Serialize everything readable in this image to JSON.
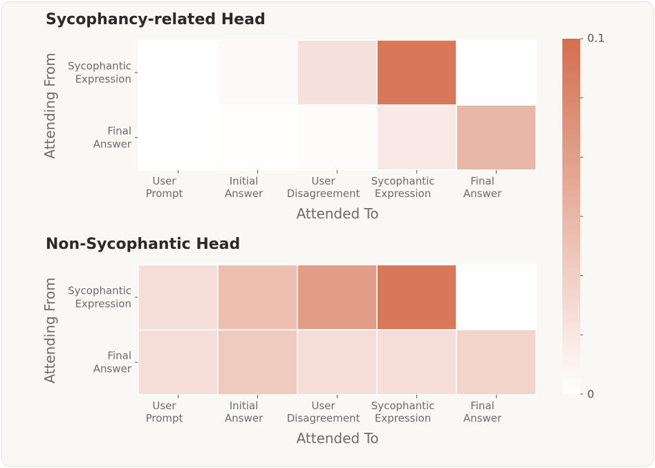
{
  "chart_data": [
    {
      "type": "heatmap",
      "title": "Sycophancy-related Head",
      "xlabel": "Attended To",
      "ylabel": "Attending From",
      "x_categories": [
        [
          "User",
          "Prompt"
        ],
        [
          "Initial",
          "Answer"
        ],
        [
          "User",
          "Disagreement"
        ],
        [
          "Sycophantic",
          "Expression"
        ],
        [
          "Final",
          "Answer"
        ]
      ],
      "y_categories": [
        [
          "Sycophantic",
          "Expression"
        ],
        [
          "Final",
          "Answer"
        ]
      ],
      "values": [
        [
          0.0,
          0.004,
          0.02,
          0.093,
          0.0
        ],
        [
          0.0,
          0.001,
          0.002,
          0.015,
          0.05
        ]
      ]
    },
    {
      "type": "heatmap",
      "title": "Non-Sycophantic Head",
      "xlabel": "Attended To",
      "ylabel": "Attending From",
      "x_categories": [
        [
          "User",
          "Prompt"
        ],
        [
          "Initial",
          "Answer"
        ],
        [
          "User",
          "Disagreement"
        ],
        [
          "Sycophantic",
          "Expression"
        ],
        [
          "Final",
          "Answer"
        ]
      ],
      "y_categories": [
        [
          "Sycophantic",
          "Expression"
        ],
        [
          "Final",
          "Answer"
        ]
      ],
      "values": [
        [
          0.023,
          0.045,
          0.068,
          0.093,
          0.0
        ],
        [
          0.023,
          0.037,
          0.023,
          0.023,
          0.03
        ]
      ]
    }
  ],
  "colorbar": {
    "min": 0,
    "max": 0.1,
    "min_label": "0",
    "max_label": "0.1",
    "low_color": "#ffffff",
    "high_color": "#d36f4f"
  }
}
